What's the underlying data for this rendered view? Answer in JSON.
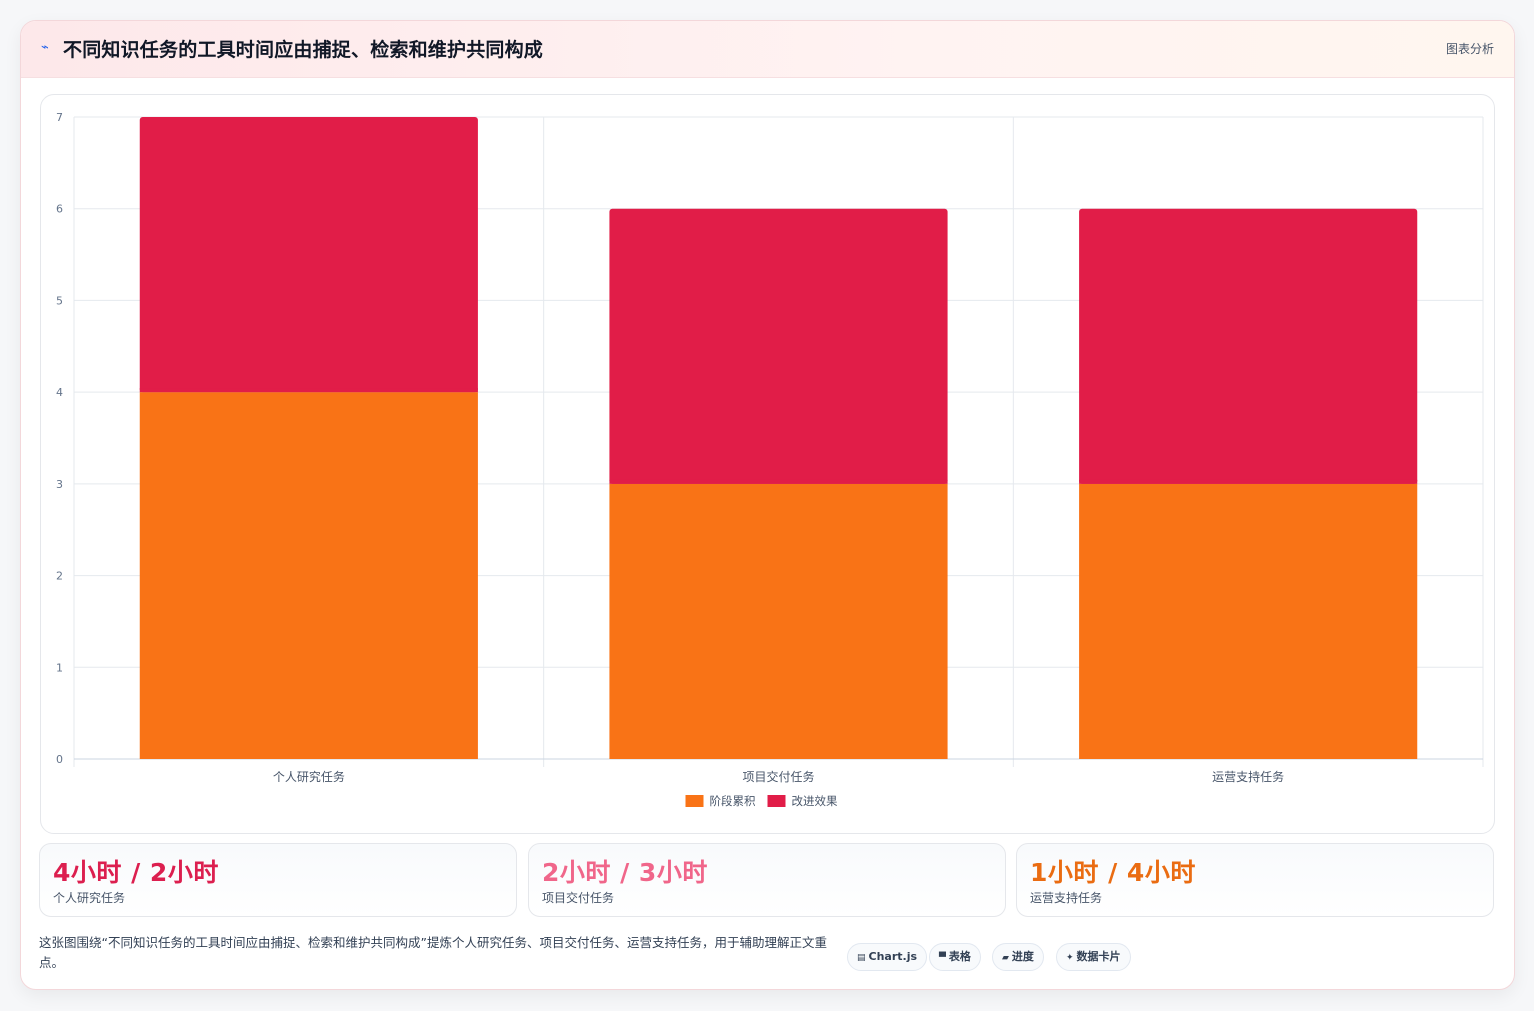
{
  "header": {
    "title_icon": "chart-line-icon",
    "title": "不同知识任务的工具时间应由捕捉、检索和维护共同构成",
    "action_label": "图表分析"
  },
  "chart_data": {
    "type": "bar",
    "stacked": true,
    "categories": [
      "个人研究任务",
      "项目交付任务",
      "运营支持任务"
    ],
    "series": [
      {
        "name": "阶段累积",
        "values": [
          4,
          3,
          3
        ],
        "color": "#f97316"
      },
      {
        "name": "改进效果",
        "values": [
          3,
          3,
          3
        ],
        "color": "#e11d48"
      }
    ],
    "ylim": [
      0,
      7
    ],
    "yticks": [
      "0",
      "1",
      "2",
      "3",
      "4",
      "5",
      "6",
      "7"
    ],
    "grid": true,
    "legend_position": "bottom-center"
  },
  "stats": [
    {
      "value": "4小时 / 2小时",
      "label": "个人研究任务",
      "color": "#dc1f4f"
    },
    {
      "value": "2小时 / 3小时",
      "label": "项目交付任务",
      "color": "#f0668a"
    },
    {
      "value": "1小时 / 4小时",
      "label": "运营支持任务",
      "color": "#ea6c12"
    }
  ],
  "summary": "这张图围绕“不同知识任务的工具时间应由捕捉、检索和维护共同构成”提炼个人研究任务、项目交付任务、运营支持任务，用于辅助理解正文重点。",
  "chips": [
    {
      "icon": "chart-icon",
      "glyph": "▤",
      "label": "Chart.js"
    },
    {
      "icon": "table-icon",
      "glyph": "▀",
      "label": "表格"
    },
    {
      "icon": "progress-icon",
      "glyph": "▰",
      "label": "进度"
    },
    {
      "icon": "sparkle-icon",
      "glyph": "✦",
      "label": "数据卡片"
    }
  ]
}
